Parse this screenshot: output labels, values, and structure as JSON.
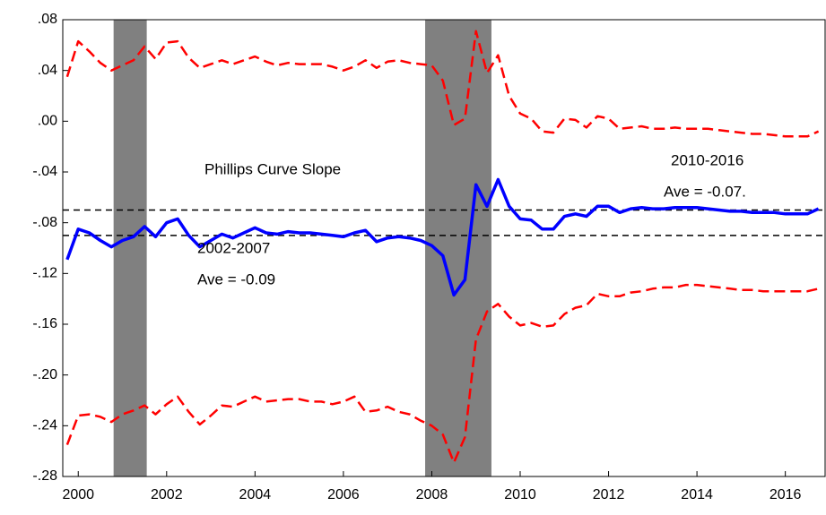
{
  "chart_data": {
    "type": "line",
    "x": [
      1999.75,
      2000,
      2000.25,
      2000.5,
      2000.75,
      2001,
      2001.25,
      2001.5,
      2001.75,
      2002,
      2002.25,
      2002.5,
      2002.75,
      2003,
      2003.25,
      2003.5,
      2003.75,
      2004,
      2004.25,
      2004.5,
      2004.75,
      2005,
      2005.25,
      2005.5,
      2005.75,
      2006,
      2006.25,
      2006.5,
      2006.75,
      2007,
      2007.25,
      2007.5,
      2007.75,
      2008,
      2008.25,
      2008.5,
      2008.75,
      2009,
      2009.25,
      2009.5,
      2009.75,
      2010,
      2010.25,
      2010.5,
      2010.75,
      2011,
      2011.25,
      2011.5,
      2011.75,
      2012,
      2012.25,
      2012.5,
      2012.75,
      2013,
      2013.25,
      2013.5,
      2013.75,
      2014,
      2014.25,
      2014.5,
      2014.75,
      2015,
      2015.25,
      2015.5,
      2015.75,
      2016,
      2016.25,
      2016.5,
      2016.75
    ],
    "series": [
      {
        "name": "Phillips Curve Slope",
        "color": "#0000ff",
        "dashed": false,
        "values": [
          -0.109,
          -0.085,
          -0.088,
          -0.094,
          -0.099,
          -0.094,
          -0.091,
          -0.083,
          -0.091,
          -0.08,
          -0.077,
          -0.09,
          -0.099,
          -0.094,
          -0.089,
          -0.092,
          -0.088,
          -0.084,
          -0.088,
          -0.089,
          -0.087,
          -0.088,
          -0.088,
          -0.089,
          -0.09,
          -0.091,
          -0.088,
          -0.086,
          -0.095,
          -0.092,
          -0.091,
          -0.092,
          -0.094,
          -0.098,
          -0.106,
          -0.137,
          -0.125,
          -0.05,
          -0.067,
          -0.046,
          -0.067,
          -0.077,
          -0.078,
          -0.085,
          -0.085,
          -0.075,
          -0.073,
          -0.075,
          -0.067,
          -0.067,
          -0.072,
          -0.069,
          -0.068,
          -0.069,
          -0.069,
          -0.068,
          -0.068,
          -0.068,
          -0.069,
          -0.07,
          -0.071,
          -0.071,
          -0.072,
          -0.072,
          -0.072,
          -0.073,
          -0.073,
          -0.073,
          -0.069
        ]
      },
      {
        "color": "#ff0000",
        "dashed": true,
        "values": [
          0.035,
          0.063,
          0.055,
          0.046,
          0.04,
          0.044,
          0.048,
          0.059,
          0.049,
          0.062,
          0.063,
          0.05,
          0.042,
          0.045,
          0.048,
          0.045,
          0.048,
          0.051,
          0.047,
          0.044,
          0.046,
          0.045,
          0.045,
          0.045,
          0.043,
          0.04,
          0.043,
          0.048,
          0.042,
          0.047,
          0.048,
          0.046,
          0.045,
          0.044,
          0.032,
          -0.003,
          0.002,
          0.071,
          0.038,
          0.052,
          0.02,
          0.006,
          0.002,
          -0.008,
          -0.009,
          0.002,
          0.001,
          -0.005,
          0.004,
          0.002,
          -0.006,
          -0.005,
          -0.004,
          -0.006,
          -0.006,
          -0.005,
          -0.006,
          -0.006,
          -0.006,
          -0.007,
          -0.008,
          -0.009,
          -0.01,
          -0.01,
          -0.011,
          -0.012,
          -0.012,
          -0.012,
          -0.008
        ]
      },
      {
        "color": "#ff0000",
        "dashed": true,
        "values": [
          -0.255,
          -0.232,
          -0.231,
          -0.233,
          -0.237,
          -0.231,
          -0.228,
          -0.224,
          -0.231,
          -0.223,
          -0.217,
          -0.229,
          -0.239,
          -0.232,
          -0.224,
          -0.225,
          -0.221,
          -0.217,
          -0.221,
          -0.22,
          -0.219,
          -0.219,
          -0.221,
          -0.221,
          -0.223,
          -0.221,
          -0.217,
          -0.229,
          -0.228,
          -0.225,
          -0.229,
          -0.231,
          -0.236,
          -0.24,
          -0.247,
          -0.269,
          -0.249,
          -0.172,
          -0.15,
          -0.144,
          -0.154,
          -0.161,
          -0.159,
          -0.162,
          -0.161,
          -0.152,
          -0.147,
          -0.145,
          -0.136,
          -0.138,
          -0.138,
          -0.135,
          -0.134,
          -0.132,
          -0.131,
          -0.131,
          -0.129,
          -0.129,
          -0.13,
          -0.131,
          -0.132,
          -0.133,
          -0.133,
          -0.134,
          -0.134,
          -0.134,
          -0.134,
          -0.134,
          -0.132
        ]
      }
    ],
    "xlim": [
      1999.65,
      2016.9
    ],
    "xticks": [
      2000,
      2002,
      2004,
      2006,
      2008,
      2010,
      2012,
      2014,
      2016
    ],
    "ylim": [
      -0.28,
      0.08
    ],
    "yticks": [
      {
        "value": 0.08,
        "label": ".08"
      },
      {
        "value": 0.04,
        "label": ".04"
      },
      {
        "value": 0,
        "label": ".00"
      },
      {
        "value": -0.04,
        "label": "-.04"
      },
      {
        "value": -0.08,
        "label": "-.08"
      },
      {
        "value": -0.12,
        "label": "-.12"
      },
      {
        "value": -0.16,
        "label": "-.16"
      },
      {
        "value": -0.2,
        "label": "-.20"
      },
      {
        "value": -0.24,
        "label": "-.24"
      },
      {
        "value": -0.28,
        "label": "-.28"
      }
    ],
    "hlines": [
      -0.07,
      -0.09
    ],
    "shaded_regions": [
      [
        2000.8,
        2001.55
      ],
      [
        2007.85,
        2009.35
      ]
    ],
    "shade_color": "#808080",
    "annotations": [
      "2002-2007",
      "Ave = -0.09",
      "2010-2016",
      "Ave = -0.07."
    ]
  }
}
